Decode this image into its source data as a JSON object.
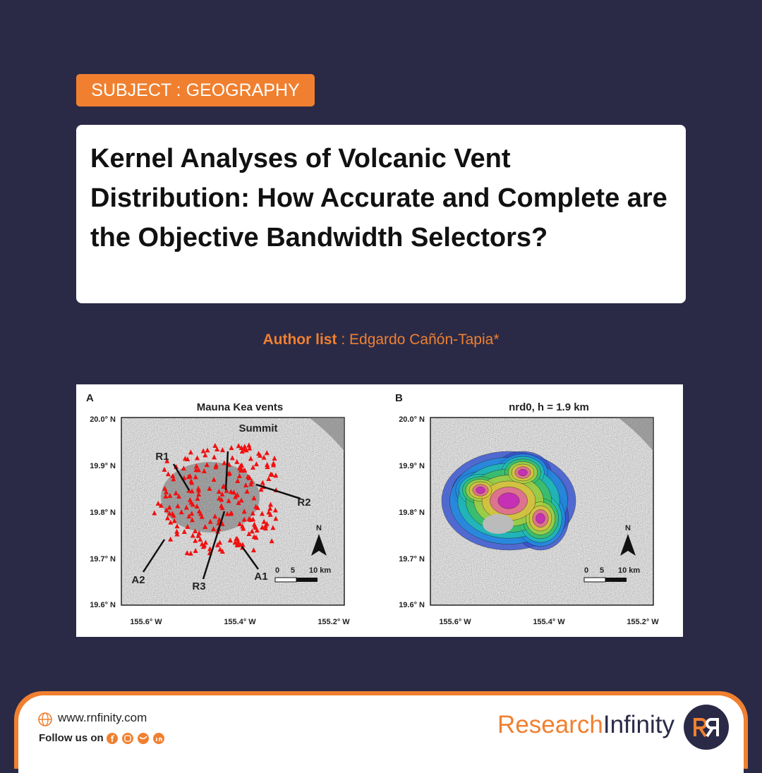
{
  "header": {
    "subject": "SUBJECT : GEOGRAPHY",
    "title": "Kernel Analyses of Volcanic Vent Distribution: How Accurate and Complete are the Objective Bandwidth Selectors?",
    "author_label": "Author list",
    "author_separator": ":",
    "authors": "Edgardo Cañón-Tapia*"
  },
  "figure": {
    "panels": [
      {
        "letter": "A",
        "title": "Mauna Kea vents",
        "y_labels": [
          "20.0° N",
          "19.9° N",
          "19.8° N",
          "19.7° N",
          "19.6° N"
        ],
        "x_labels": [
          "155.6° W",
          "155.4° W",
          "155.2° W"
        ],
        "annotations": [
          "Summit",
          "R1",
          "R2",
          "R3",
          "A1",
          "A2"
        ],
        "north": "N",
        "scale": [
          "0",
          "5",
          "10 km"
        ]
      },
      {
        "letter": "B",
        "title": "nrd0, h = 1.9 km",
        "y_labels": [
          "20.0° N",
          "19.9° N",
          "19.8° N",
          "19.7° N",
          "19.6° N"
        ],
        "x_labels": [
          "155.6° W",
          "155.4° W",
          "155.2° W"
        ],
        "north": "N",
        "scale": [
          "0",
          "5",
          "10 km"
        ]
      }
    ]
  },
  "footer": {
    "website": "www.rnfinity.com",
    "follow": "Follow us on",
    "brand_first": "Research",
    "brand_second": "Infinity"
  }
}
